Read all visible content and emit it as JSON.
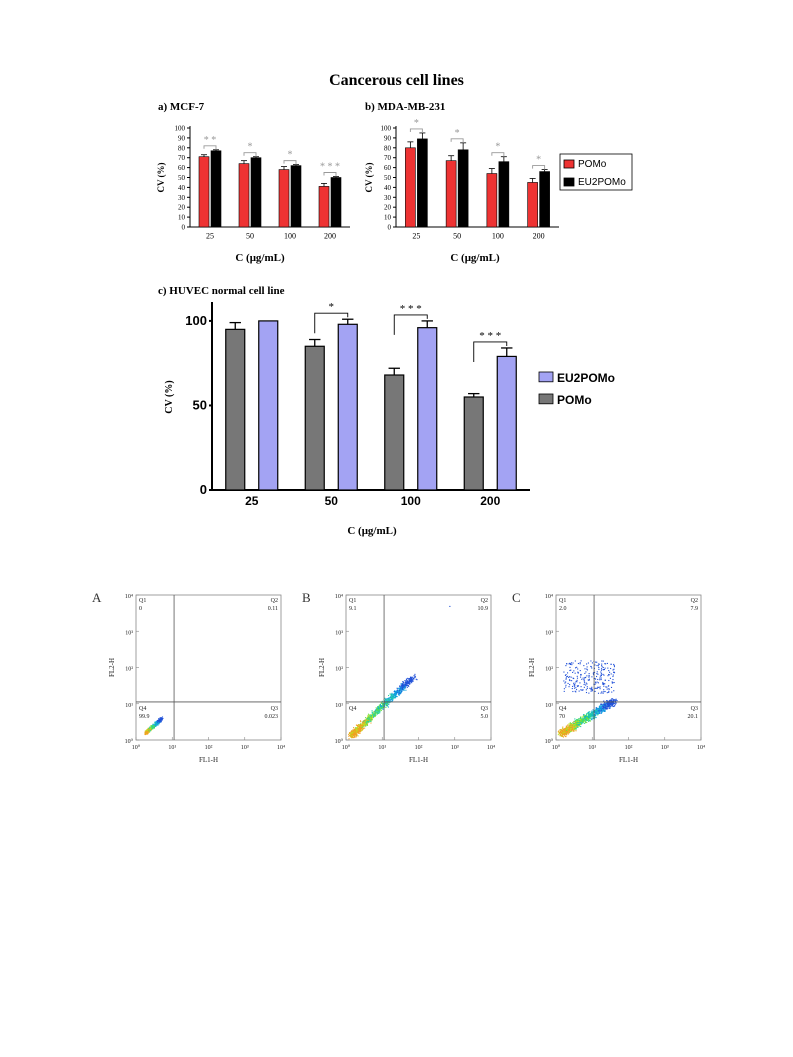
{
  "figure_title": "Cancerous cell lines",
  "colors": {
    "pomo_red": "#ee3333",
    "black": "#000000",
    "pomo_grey": "#777777",
    "eu2pomo_lavender": "#a3a3f3"
  },
  "chart_data": [
    {
      "id": "a",
      "type": "bar",
      "title": "a) MCF-7",
      "xlabel": "C (μg/mL)",
      "ylabel": "CV (%)",
      "ylim": [
        0,
        100
      ],
      "yticks": [
        "0",
        "10",
        "20",
        "30",
        "40",
        "50",
        "60",
        "70",
        "80",
        "90",
        "100"
      ],
      "categories": [
        "25",
        "50",
        "100",
        "200"
      ],
      "series": [
        {
          "name": "POMo",
          "color": "#ee3333",
          "values": [
            71,
            64,
            58,
            41
          ],
          "errors": [
            2,
            3,
            3,
            3
          ]
        },
        {
          "name": "EU2POMo",
          "color": "#000000",
          "values": [
            77,
            70,
            62,
            50
          ],
          "errors": [
            1,
            1,
            1,
            1
          ]
        }
      ],
      "significance": [
        "* *",
        "*",
        "*",
        "* * *"
      ],
      "legend": false
    },
    {
      "id": "b",
      "type": "bar",
      "title": "b) MDA-MB-231",
      "xlabel": "C (μg/mL)",
      "ylabel": "CV (%)",
      "ylim": [
        0,
        100
      ],
      "yticks": [
        "0",
        "10",
        "20",
        "30",
        "40",
        "50",
        "60",
        "70",
        "80",
        "90",
        "100"
      ],
      "categories": [
        "25",
        "50",
        "100",
        "200"
      ],
      "series": [
        {
          "name": "POMo",
          "color": "#ee3333",
          "values": [
            80,
            67,
            54,
            45
          ],
          "errors": [
            6,
            5,
            5,
            4
          ]
        },
        {
          "name": "EU2POMo",
          "color": "#000000",
          "values": [
            89,
            78,
            66,
            56
          ],
          "errors": [
            6,
            7,
            5,
            2
          ]
        }
      ],
      "significance": [
        "*",
        "*",
        "*",
        "*"
      ],
      "legend": true,
      "legend_placement": "right"
    },
    {
      "id": "c",
      "type": "bar",
      "title": "c) HUVEC normal cell line",
      "xlabel": "C (μg/mL)",
      "ylabel": "CV (%)",
      "ylim": [
        0,
        110
      ],
      "yticks": [
        "0",
        "50",
        "100"
      ],
      "categories": [
        "25",
        "50",
        "100",
        "200"
      ],
      "series": [
        {
          "name": "POMo",
          "color": "#777777",
          "values": [
            95,
            85,
            68,
            55
          ],
          "errors": [
            4,
            4,
            4,
            2
          ]
        },
        {
          "name": "EU2POMo",
          "color": "#a3a3f3",
          "values": [
            100,
            98,
            96,
            79
          ],
          "errors": [
            0,
            3,
            4,
            5
          ]
        }
      ],
      "significance": [
        "",
        "*",
        "* * *",
        "* * *"
      ],
      "legend": true,
      "legend_order": [
        "EU2POMo",
        "POMo"
      ],
      "legend_placement": "right"
    }
  ],
  "flow_panels": [
    {
      "letter": "A",
      "xlabel": "FL1-H",
      "ylabel": "FL2-H",
      "quadrants": {
        "q1_label": "Q1",
        "q1_value": "0",
        "q2_label": "Q2",
        "q2_value": "0.11",
        "q3_label": "Q3",
        "q3_value": "0.023",
        "q4_label": "Q4",
        "q4_value": "99.9"
      }
    },
    {
      "letter": "B",
      "xlabel": "FL1-H",
      "ylabel": "FL2-H",
      "quadrants": {
        "q1_label": "Q1",
        "q1_value": "9.1",
        "q2_label": "Q2",
        "q2_value": "10.9",
        "q3_label": "Q3",
        "q3_value": "5.0",
        "q4_label": "Q4",
        "q4_value": ""
      }
    },
    {
      "letter": "C",
      "xlabel": "FL1-H",
      "ylabel": "FL2-H",
      "quadrants": {
        "q1_label": "Q1",
        "q1_value": "2.0",
        "q2_label": "Q2",
        "q2_value": "7.9",
        "q3_label": "Q3",
        "q3_value": "20.1",
        "q4_label": "Q4",
        "q4_value": "70"
      }
    }
  ],
  "flow_axis_ticks": [
    "10⁰",
    "10¹",
    "10²",
    "10³",
    "10⁴"
  ]
}
